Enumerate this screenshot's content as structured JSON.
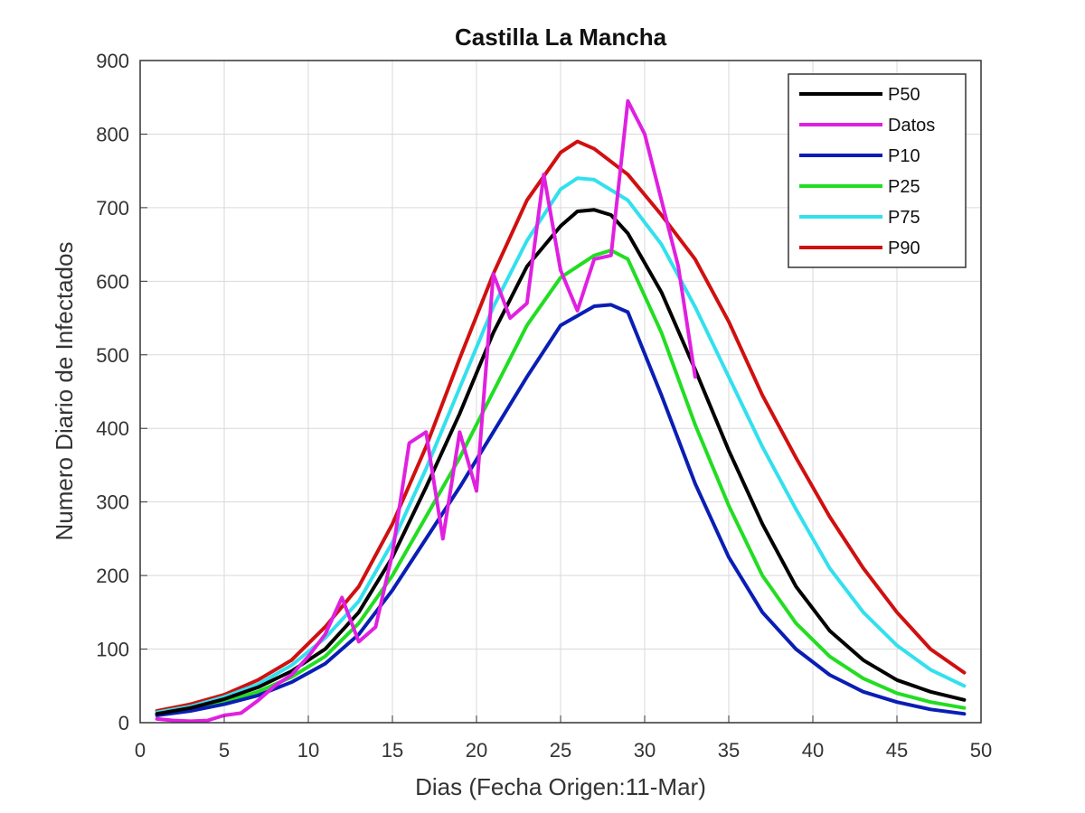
{
  "chart_data": {
    "type": "line",
    "title": "Castilla La Mancha",
    "xlabel": "Dias (Fecha Origen:11-Mar)",
    "ylabel": "Numero Diario de Infectados",
    "xlim": [
      0,
      50
    ],
    "ylim": [
      0,
      900
    ],
    "xticks": [
      0,
      5,
      10,
      15,
      20,
      25,
      30,
      35,
      40,
      45,
      50
    ],
    "yticks": [
      0,
      100,
      200,
      300,
      400,
      500,
      600,
      700,
      800,
      900
    ],
    "grid": true,
    "legend_position": "top-right",
    "series": [
      {
        "name": "P50",
        "color": "#000000",
        "x": [
          1,
          3,
          5,
          7,
          9,
          11,
          13,
          15,
          17,
          19,
          21,
          23,
          25,
          26,
          27,
          28,
          29,
          31,
          33,
          35,
          37,
          39,
          41,
          43,
          45,
          47,
          49
        ],
        "y": [
          12,
          20,
          32,
          48,
          70,
          100,
          150,
          225,
          320,
          420,
          530,
          620,
          675,
          695,
          697,
          690,
          665,
          585,
          480,
          370,
          270,
          185,
          125,
          85,
          58,
          42,
          31
        ]
      },
      {
        "name": "Datos",
        "color": "#e020e0",
        "x": [
          1,
          2,
          3,
          4,
          5,
          6,
          7,
          8,
          9,
          10,
          11,
          12,
          13,
          14,
          15,
          16,
          17,
          18,
          19,
          20,
          21,
          22,
          23,
          24,
          25,
          26,
          27,
          28,
          29,
          30,
          31,
          32,
          33
        ],
        "y": [
          5,
          3,
          2,
          3,
          10,
          13,
          30,
          50,
          65,
          90,
          120,
          170,
          110,
          130,
          230,
          380,
          395,
          250,
          395,
          315,
          610,
          550,
          570,
          745,
          615,
          560,
          630,
          635,
          845,
          800,
          710,
          620,
          470
        ]
      },
      {
        "name": "P10",
        "color": "#0a1eb4",
        "x": [
          1,
          3,
          5,
          7,
          9,
          11,
          13,
          15,
          17,
          19,
          21,
          23,
          25,
          27,
          28,
          29,
          31,
          33,
          35,
          37,
          39,
          41,
          43,
          45,
          47,
          49
        ],
        "y": [
          10,
          16,
          25,
          37,
          55,
          80,
          120,
          180,
          250,
          320,
          395,
          470,
          540,
          566,
          568,
          558,
          445,
          325,
          225,
          150,
          100,
          65,
          42,
          28,
          18,
          12
        ]
      },
      {
        "name": "P25",
        "color": "#22dd22",
        "x": [
          1,
          3,
          5,
          7,
          9,
          11,
          13,
          15,
          17,
          19,
          21,
          23,
          25,
          27,
          28,
          29,
          31,
          33,
          35,
          37,
          39,
          41,
          43,
          45,
          47,
          49
        ],
        "y": [
          11,
          18,
          28,
          42,
          62,
          90,
          135,
          200,
          280,
          360,
          450,
          540,
          605,
          635,
          642,
          630,
          530,
          405,
          295,
          200,
          135,
          90,
          60,
          40,
          28,
          20
        ]
      },
      {
        "name": "P75",
        "color": "#33e0ee",
        "x": [
          1,
          3,
          5,
          7,
          9,
          11,
          13,
          15,
          17,
          19,
          21,
          23,
          25,
          26,
          27,
          29,
          31,
          33,
          35,
          37,
          39,
          41,
          43,
          45,
          47,
          49
        ],
        "y": [
          14,
          22,
          35,
          52,
          78,
          115,
          165,
          245,
          345,
          455,
          565,
          655,
          725,
          740,
          738,
          710,
          650,
          565,
          470,
          375,
          290,
          210,
          150,
          105,
          72,
          50
        ]
      },
      {
        "name": "P90",
        "color": "#d01010",
        "x": [
          1,
          3,
          5,
          7,
          9,
          11,
          13,
          15,
          17,
          19,
          21,
          23,
          25,
          26,
          27,
          29,
          31,
          33,
          35,
          37,
          39,
          41,
          43,
          45,
          47,
          49
        ],
        "y": [
          16,
          25,
          38,
          58,
          85,
          130,
          185,
          270,
          375,
          495,
          610,
          710,
          775,
          790,
          780,
          745,
          690,
          630,
          545,
          445,
          360,
          280,
          210,
          150,
          100,
          68
        ]
      }
    ]
  }
}
